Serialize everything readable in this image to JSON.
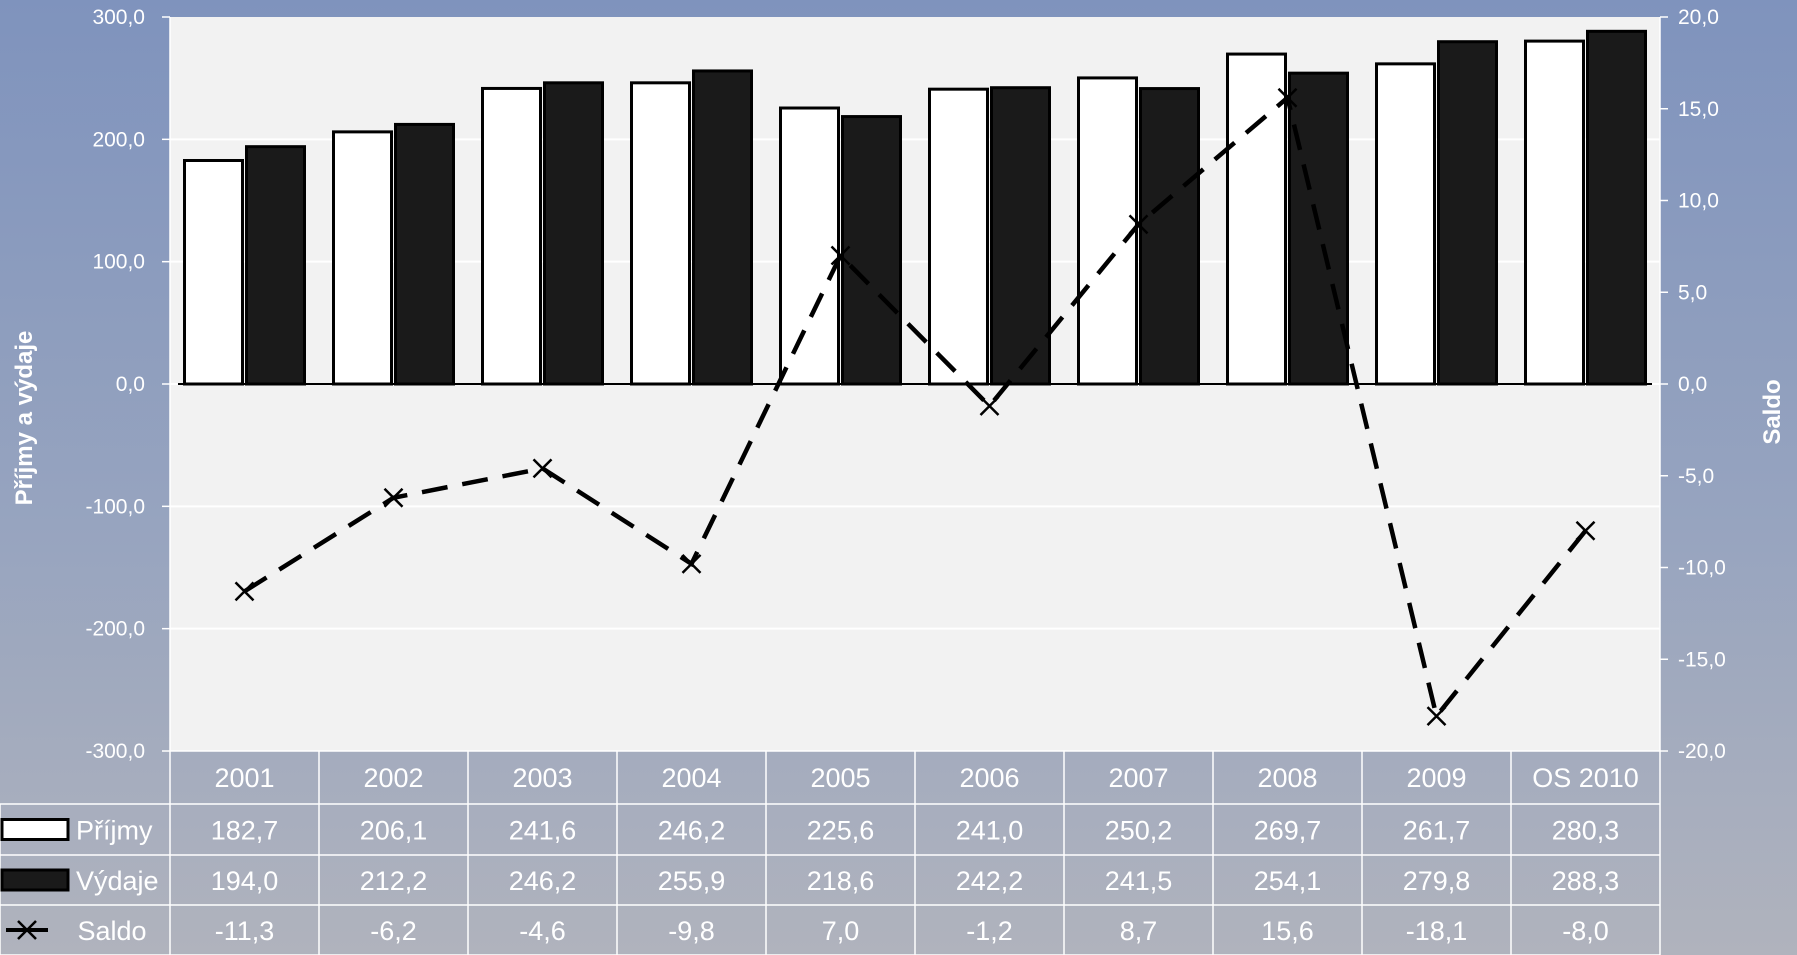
{
  "chart_data": {
    "type": "bar",
    "categories": [
      "2001",
      "2002",
      "2003",
      "2004",
      "2005",
      "2006",
      "2007",
      "2008",
      "2009",
      "OS 2010"
    ],
    "series": [
      {
        "name": "Příjmy",
        "kind": "bar",
        "axis": "left",
        "color": "#ffffff",
        "values": [
          182.7,
          206.1,
          241.6,
          246.2,
          225.6,
          241.0,
          250.2,
          269.7,
          261.7,
          280.3
        ],
        "display": [
          "182,7",
          "206,1",
          "241,6",
          "246,2",
          "225,6",
          "241,0",
          "250,2",
          "269,7",
          "261,7",
          "280,3"
        ]
      },
      {
        "name": "Výdaje",
        "kind": "bar",
        "axis": "left",
        "color": "#1a1a1a",
        "values": [
          194.0,
          212.2,
          246.2,
          255.9,
          218.6,
          242.2,
          241.5,
          254.1,
          279.8,
          288.3
        ],
        "display": [
          "194,0",
          "212,2",
          "246,2",
          "255,9",
          "218,6",
          "242,2",
          "241,5",
          "254,1",
          "279,8",
          "288,3"
        ]
      },
      {
        "name": "Saldo",
        "kind": "line",
        "style": "dashed",
        "marker": "x",
        "axis": "right",
        "color": "#000000",
        "values": [
          -11.3,
          -6.2,
          -4.6,
          -9.8,
          7.0,
          -1.2,
          8.7,
          15.6,
          -18.1,
          -8.0
        ],
        "display": [
          "-11,3",
          "-6,2",
          "-4,6",
          "-9,8",
          "7,0",
          "-1,2",
          "8,7",
          "15,6",
          "-18,1",
          "-8,0"
        ]
      }
    ],
    "ylabel": "Příjmy a výdaje",
    "y2label": "Saldo",
    "ylim": [
      -300,
      300
    ],
    "y2lim": [
      -20,
      20
    ],
    "yticks": [
      "300,0",
      "200,0",
      "100,0",
      "0,0",
      "-100,0",
      "-200,0",
      "-300,0"
    ],
    "y2ticks": [
      "20,0",
      "15,0",
      "10,0",
      "5,0",
      "0,0",
      "-5,0",
      "-10,0",
      "-15,0",
      "-20,0"
    ],
    "grid": true,
    "data_table": true,
    "plot_background": "#f2f2f2"
  }
}
